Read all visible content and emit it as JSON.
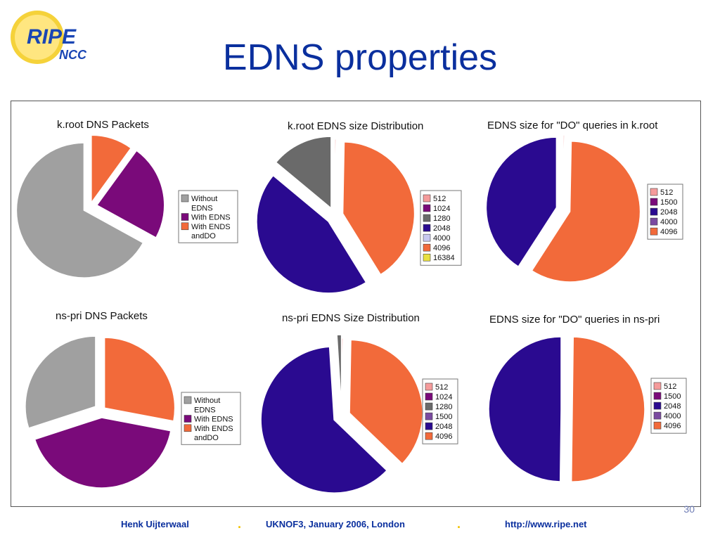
{
  "slide": {
    "title": "EDNS properties",
    "page_number": "30",
    "logo": {
      "line1": "RIPE",
      "line2": "NCC"
    }
  },
  "footer": {
    "author": "Henk Uijterwaal",
    "event": "UKNOF3, January 2006, London",
    "url": "http://www.ripe.net",
    "separator": "."
  },
  "colors": {
    "title": "#0a2f9e",
    "without_edns": "#a0a0a0",
    "with_edns": "#7a0a7a",
    "with_edns_do": "#f26a3a",
    "size_512": "#f59b9b",
    "size_1024": "#7a0a7a",
    "size_1280": "#6a6a6a",
    "size_1500": "#7a4aa0",
    "size_2048": "#2a0a90",
    "size_4000": "#c8c8f0",
    "size_4096": "#f26a3a",
    "size_16384": "#e8e040"
  },
  "chart_data": [
    {
      "type": "pie",
      "title": "k.root DNS Packets",
      "legend": [
        {
          "name": "Without EDNS",
          "lines": [
            "Without",
            "EDNS"
          ],
          "color": "#a0a0a0"
        },
        {
          "name": "With EDNS",
          "lines": [
            "With EDNS"
          ],
          "color": "#7a0a7a"
        },
        {
          "name": "With ENDS andDO",
          "lines": [
            "With ENDS",
            "andDO"
          ],
          "color": "#f26a3a"
        }
      ],
      "slices": [
        {
          "label": "With ENDS andDO",
          "value": 10,
          "color": "#f26a3a"
        },
        {
          "label": "With EDNS",
          "value": 23,
          "color": "#7a0a7a"
        },
        {
          "label": "Without EDNS",
          "value": 67,
          "color": "#a0a0a0"
        }
      ]
    },
    {
      "type": "pie",
      "title": "k.root EDNS size Distribution",
      "legend": [
        {
          "name": "512",
          "lines": [
            "512"
          ],
          "color": "#f59b9b"
        },
        {
          "name": "1024",
          "lines": [
            "1024"
          ],
          "color": "#7a0a7a"
        },
        {
          "name": "1280",
          "lines": [
            "1280"
          ],
          "color": "#6a6a6a"
        },
        {
          "name": "2048",
          "lines": [
            "2048"
          ],
          "color": "#2a0a90"
        },
        {
          "name": "4000",
          "lines": [
            "4000"
          ],
          "color": "#c8c8f0"
        },
        {
          "name": "4096",
          "lines": [
            "4096"
          ],
          "color": "#f26a3a"
        },
        {
          "name": "16384",
          "lines": [
            "16384"
          ],
          "color": "#e8e040"
        }
      ],
      "slices": [
        {
          "label": "512",
          "value": 0.3,
          "color": "#f59b9b"
        },
        {
          "label": "4096",
          "value": 41,
          "color": "#f26a3a"
        },
        {
          "label": "2048",
          "value": 45,
          "color": "#2a0a90"
        },
        {
          "label": "1280",
          "value": 14,
          "color": "#6a6a6a"
        }
      ]
    },
    {
      "type": "pie",
      "title": "EDNS size for \"DO\" queries in k.root",
      "legend": [
        {
          "name": "512",
          "lines": [
            "512"
          ],
          "color": "#f59b9b"
        },
        {
          "name": "1500",
          "lines": [
            "1500"
          ],
          "color": "#7a0a7a"
        },
        {
          "name": "2048",
          "lines": [
            "2048"
          ],
          "color": "#2a0a90"
        },
        {
          "name": "4000",
          "lines": [
            "4000"
          ],
          "color": "#7a4aa0"
        },
        {
          "name": "4096",
          "lines": [
            "4096"
          ],
          "color": "#f26a3a"
        }
      ],
      "slices": [
        {
          "label": "512",
          "value": 0.3,
          "color": "#f59b9b"
        },
        {
          "label": "4096",
          "value": 59,
          "color": "#f26a3a"
        },
        {
          "label": "2048",
          "value": 41,
          "color": "#2a0a90"
        }
      ]
    },
    {
      "type": "pie",
      "title": "ns-pri DNS Packets",
      "legend": [
        {
          "name": "Without EDNS",
          "lines": [
            "Without",
            "EDNS"
          ],
          "color": "#a0a0a0"
        },
        {
          "name": "With EDNS",
          "lines": [
            "With EDNS"
          ],
          "color": "#7a0a7a"
        },
        {
          "name": "With ENDS andDO",
          "lines": [
            "With ENDS",
            "andDO"
          ],
          "color": "#f26a3a"
        }
      ],
      "slices": [
        {
          "label": "With ENDS andDO",
          "value": 28,
          "color": "#f26a3a"
        },
        {
          "label": "With EDNS",
          "value": 42,
          "color": "#7a0a7a"
        },
        {
          "label": "Without EDNS",
          "value": 30,
          "color": "#a0a0a0"
        }
      ]
    },
    {
      "type": "pie",
      "title": "ns-pri EDNS Size Distribution",
      "legend": [
        {
          "name": "512",
          "lines": [
            "512"
          ],
          "color": "#f59b9b"
        },
        {
          "name": "1024",
          "lines": [
            "1024"
          ],
          "color": "#7a0a7a"
        },
        {
          "name": "1280",
          "lines": [
            "1280"
          ],
          "color": "#6a6a6a"
        },
        {
          "name": "1500",
          "lines": [
            "1500"
          ],
          "color": "#7a4aa0"
        },
        {
          "name": "2048",
          "lines": [
            "2048"
          ],
          "color": "#2a0a90"
        },
        {
          "name": "4096",
          "lines": [
            "4096"
          ],
          "color": "#f26a3a"
        }
      ],
      "slices": [
        {
          "label": "512",
          "value": 0.3,
          "color": "#f59b9b"
        },
        {
          "label": "4096",
          "value": 37,
          "color": "#f26a3a"
        },
        {
          "label": "2048",
          "value": 62,
          "color": "#2a0a90"
        },
        {
          "label": "1280",
          "value": 1,
          "color": "#6a6a6a"
        }
      ]
    },
    {
      "type": "pie",
      "title": "EDNS size for \"DO\" queries in ns-pri",
      "legend": [
        {
          "name": "512",
          "lines": [
            "512"
          ],
          "color": "#f59b9b"
        },
        {
          "name": "1500",
          "lines": [
            "1500"
          ],
          "color": "#7a0a7a"
        },
        {
          "name": "2048",
          "lines": [
            "2048"
          ],
          "color": "#2a0a90"
        },
        {
          "name": "4000",
          "lines": [
            "4000"
          ],
          "color": "#7a4aa0"
        },
        {
          "name": "4096",
          "lines": [
            "4096"
          ],
          "color": "#f26a3a"
        }
      ],
      "slices": [
        {
          "label": "512",
          "value": 0.2,
          "color": "#f59b9b"
        },
        {
          "label": "4096",
          "value": 50,
          "color": "#f26a3a"
        },
        {
          "label": "2048",
          "value": 49.8,
          "color": "#2a0a90"
        }
      ]
    }
  ]
}
